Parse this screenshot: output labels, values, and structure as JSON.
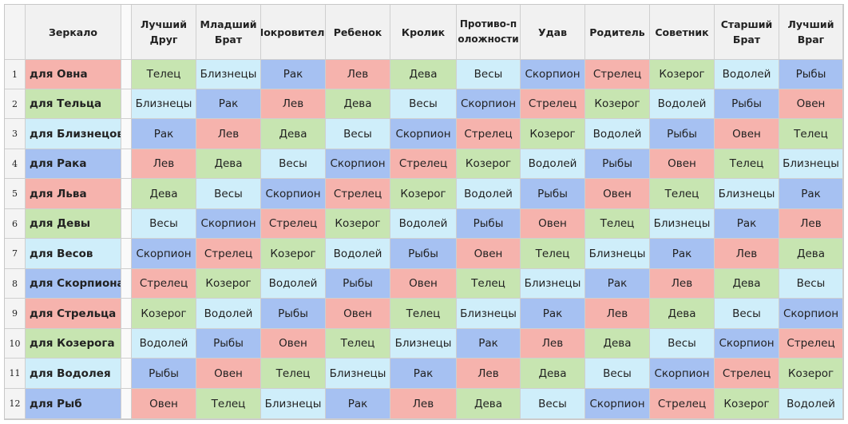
{
  "headers": [
    "Зеркало",
    "Лучший Друг",
    "Младший Брат",
    "Покровитель",
    "Ребенок",
    "Кролик",
    "Противо-положности",
    "Удав",
    "Родитель",
    "Советник",
    "Старший Брат",
    "Лучший Враг"
  ],
  "colors": {
    "pink": "#f6b3ad",
    "green": "#c7e5b1",
    "blue": "#a6c1f2",
    "cyan": "#cfeefa"
  },
  "rows": [
    {
      "num": "1",
      "label": "для Овна",
      "label_color": "pink",
      "cells": [
        "Телец",
        "Близнецы",
        "Рак",
        "Лев",
        "Дева",
        "Весы",
        "Скорпион",
        "Стрелец",
        "Козерог",
        "Водолей",
        "Рыбы"
      ],
      "colors": [
        "green",
        "cyan",
        "blue",
        "pink",
        "green",
        "cyan",
        "blue",
        "pink",
        "green",
        "cyan",
        "blue"
      ]
    },
    {
      "num": "2",
      "label": "для Тельца",
      "label_color": "green",
      "cells": [
        "Близнецы",
        "Рак",
        "Лев",
        "Дева",
        "Весы",
        "Скорпион",
        "Стрелец",
        "Козерог",
        "Водолей",
        "Рыбы",
        "Овен"
      ],
      "colors": [
        "cyan",
        "blue",
        "pink",
        "green",
        "cyan",
        "blue",
        "pink",
        "green",
        "cyan",
        "blue",
        "pink"
      ]
    },
    {
      "num": "3",
      "label": "для Близнецов",
      "label_color": "cyan",
      "cells": [
        "Рак",
        "Лев",
        "Дева",
        "Весы",
        "Скорпион",
        "Стрелец",
        "Козерог",
        "Водолей",
        "Рыбы",
        "Овен",
        "Телец"
      ],
      "colors": [
        "blue",
        "pink",
        "green",
        "cyan",
        "blue",
        "pink",
        "green",
        "cyan",
        "blue",
        "pink",
        "green"
      ]
    },
    {
      "num": "4",
      "label": "для Рака",
      "label_color": "blue",
      "cells": [
        "Лев",
        "Дева",
        "Весы",
        "Скорпион",
        "Стрелец",
        "Козерог",
        "Водолей",
        "Рыбы",
        "Овен",
        "Телец",
        "Близнецы"
      ],
      "colors": [
        "pink",
        "green",
        "cyan",
        "blue",
        "pink",
        "green",
        "cyan",
        "blue",
        "pink",
        "green",
        "cyan"
      ]
    },
    {
      "num": "5",
      "label": "для Льва",
      "label_color": "pink",
      "cells": [
        "Дева",
        "Весы",
        "Скорпион",
        "Стрелец",
        "Козерог",
        "Водолей",
        "Рыбы",
        "Овен",
        "Телец",
        "Близнецы",
        "Рак"
      ],
      "colors": [
        "green",
        "cyan",
        "blue",
        "pink",
        "green",
        "cyan",
        "blue",
        "pink",
        "green",
        "cyan",
        "blue"
      ]
    },
    {
      "num": "6",
      "label": "для Девы",
      "label_color": "green",
      "cells": [
        "Весы",
        "Скорпион",
        "Стрелец",
        "Козерог",
        "Водолей",
        "Рыбы",
        "Овен",
        "Телец",
        "Близнецы",
        "Рак",
        "Лев"
      ],
      "colors": [
        "cyan",
        "blue",
        "pink",
        "green",
        "cyan",
        "blue",
        "pink",
        "green",
        "cyan",
        "blue",
        "pink"
      ]
    },
    {
      "num": "7",
      "label": "для Весов",
      "label_color": "cyan",
      "cells": [
        "Скорпион",
        "Стрелец",
        "Козерог",
        "Водолей",
        "Рыбы",
        "Овен",
        "Телец",
        "Близнецы",
        "Рак",
        "Лев",
        "Дева"
      ],
      "colors": [
        "blue",
        "pink",
        "green",
        "cyan",
        "blue",
        "pink",
        "green",
        "cyan",
        "blue",
        "pink",
        "green"
      ]
    },
    {
      "num": "8",
      "label": "для Скорпиона",
      "label_color": "blue",
      "cells": [
        "Стрелец",
        "Козерог",
        "Водолей",
        "Рыбы",
        "Овен",
        "Телец",
        "Близнецы",
        "Рак",
        "Лев",
        "Дева",
        "Весы"
      ],
      "colors": [
        "pink",
        "green",
        "cyan",
        "blue",
        "pink",
        "green",
        "cyan",
        "blue",
        "pink",
        "green",
        "cyan"
      ]
    },
    {
      "num": "9",
      "label": "для Стрельца",
      "label_color": "pink",
      "cells": [
        "Козерог",
        "Водолей",
        "Рыбы",
        "Овен",
        "Телец",
        "Близнецы",
        "Рак",
        "Лев",
        "Дева",
        "Весы",
        "Скорпион"
      ],
      "colors": [
        "green",
        "cyan",
        "blue",
        "pink",
        "green",
        "cyan",
        "blue",
        "pink",
        "green",
        "cyan",
        "blue"
      ]
    },
    {
      "num": "10",
      "label": "для Козерога",
      "label_color": "green",
      "cells": [
        "Водолей",
        "Рыбы",
        "Овен",
        "Телец",
        "Близнецы",
        "Рак",
        "Лев",
        "Дева",
        "Весы",
        "Скорпион",
        "Стрелец"
      ],
      "colors": [
        "cyan",
        "blue",
        "pink",
        "green",
        "cyan",
        "blue",
        "pink",
        "green",
        "cyan",
        "blue",
        "pink"
      ]
    },
    {
      "num": "11",
      "label": "для Водолея",
      "label_color": "cyan",
      "cells": [
        "Рыбы",
        "Овен",
        "Телец",
        "Близнецы",
        "Рак",
        "Лев",
        "Дева",
        "Весы",
        "Скорпион",
        "Стрелец",
        "Козерог"
      ],
      "colors": [
        "blue",
        "pink",
        "green",
        "cyan",
        "blue",
        "pink",
        "green",
        "cyan",
        "blue",
        "pink",
        "green"
      ]
    },
    {
      "num": "12",
      "label": "для Рыб",
      "label_color": "blue",
      "cells": [
        "Овен",
        "Телец",
        "Близнецы",
        "Рак",
        "Лев",
        "Дева",
        "Весы",
        "Скорпион",
        "Стрелец",
        "Козерог",
        "Водолей"
      ],
      "colors": [
        "pink",
        "green",
        "cyan",
        "blue",
        "pink",
        "green",
        "cyan",
        "blue",
        "pink",
        "green",
        "cyan"
      ]
    }
  ]
}
